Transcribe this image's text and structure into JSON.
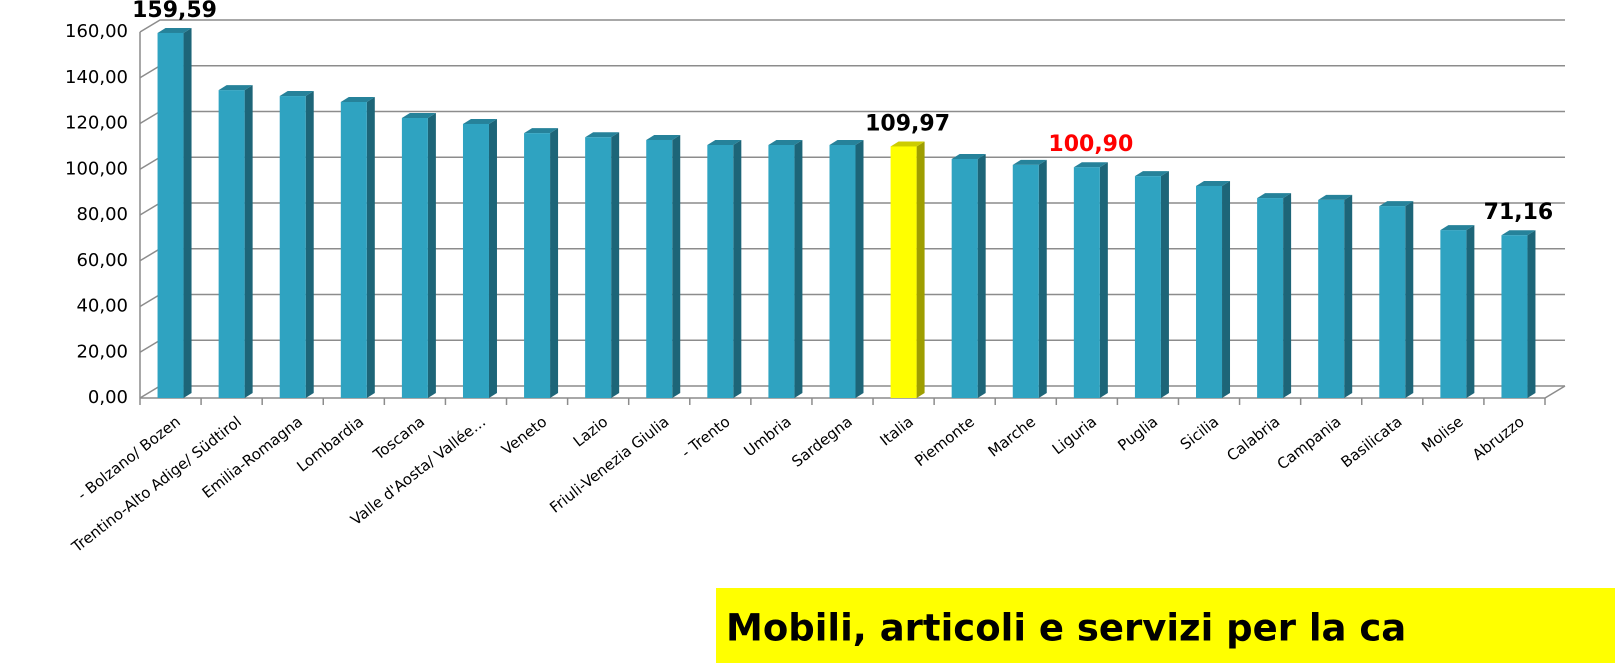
{
  "chart_data": {
    "type": "bar",
    "title": "Mobili, articoli e servizi per la ca",
    "categories": [
      "- Bolzano/ Bozen",
      "Trentino-Alto Adige/ Südtirol",
      "Emilia-Romagna",
      "Lombardia",
      "Toscana",
      "Valle d'Aosta/ Vallée…",
      "Veneto",
      "Lazio",
      "Friuli-Venezia Giulia",
      "- Trento",
      "Umbria",
      "Sardegna",
      "Italia",
      "Piemonte",
      "Marche",
      "Liguria",
      "Puglia",
      "Sicilia",
      "Calabria",
      "Campania",
      "Basilicata",
      "Molise",
      "Abruzzo"
    ],
    "values": [
      159.59,
      134.6,
      132,
      129.4,
      122.4,
      119.8,
      115.8,
      114,
      112.8,
      110.6,
      110.6,
      110.6,
      109.97,
      104.5,
      101.9,
      100.9,
      97,
      92.7,
      87.4,
      86.6,
      83.9,
      73.4,
      71.16
    ],
    "value_labels": [
      "159,59",
      null,
      null,
      null,
      null,
      null,
      null,
      null,
      null,
      null,
      null,
      null,
      "109,97",
      null,
      null,
      "100,90",
      null,
      null,
      null,
      null,
      null,
      null,
      "71,16"
    ],
    "value_label_colors": [
      "#000000",
      null,
      null,
      null,
      null,
      null,
      null,
      null,
      null,
      null,
      null,
      null,
      "#000000",
      null,
      null,
      "#ff0000",
      null,
      null,
      null,
      null,
      null,
      null,
      "#000000"
    ],
    "colors": [
      "#2fa3c1",
      "#2fa3c1",
      "#2fa3c1",
      "#2fa3c1",
      "#2fa3c1",
      "#2fa3c1",
      "#2fa3c1",
      "#2fa3c1",
      "#2fa3c1",
      "#2fa3c1",
      "#2fa3c1",
      "#2fa3c1",
      "#ffff00",
      "#2fa3c1",
      "#2fa3c1",
      "#2fa3c1",
      "#2fa3c1",
      "#2fa3c1",
      "#2fa3c1",
      "#2fa3c1",
      "#2fa3c1",
      "#2fa3c1",
      "#2fa3c1"
    ],
    "ylim": [
      0,
      160
    ],
    "yticks": [
      {
        "value": 0,
        "label": "0,00"
      },
      {
        "value": 20,
        "label": "20,00"
      },
      {
        "value": 40,
        "label": "40,00"
      },
      {
        "value": 60,
        "label": "60,00"
      },
      {
        "value": 80,
        "label": "80,00"
      },
      {
        "value": 100,
        "label": "100,00"
      },
      {
        "value": 120,
        "label": "120,00"
      },
      {
        "value": 140,
        "label": "140,00"
      },
      {
        "value": 160,
        "label": "160,00"
      }
    ],
    "grid": true
  }
}
